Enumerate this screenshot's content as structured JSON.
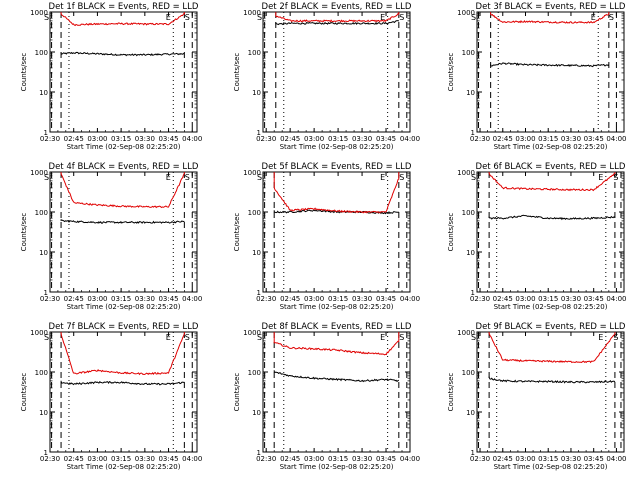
{
  "figure": {
    "colors": {
      "events": "#000000",
      "lld": "#e00000",
      "axis": "#000000"
    },
    "ylabel": "Counts/sec",
    "yticks": [
      "1",
      "10",
      "100",
      "1000"
    ],
    "legend_marks": {
      "S": "S",
      "E": "E"
    }
  },
  "chart_data": [
    {
      "type": "line",
      "title": "Det 1f BLACK = Events, RED = LLD",
      "xlabel": "Start Time (02-Sep-08 02:25:20)",
      "ylabel": "Counts/sec",
      "scale_y": "log",
      "ylim": [
        1,
        1000
      ],
      "xlim": [
        "02:30",
        "04:03"
      ],
      "xticks": [
        "02:30",
        "02:45",
        "03:00",
        "03:15",
        "03:30",
        "03:45",
        "04:00"
      ],
      "markers": [
        {
          "label": "S",
          "time": "02:31",
          "style": "dashed"
        },
        {
          "label": "",
          "time": "02:37",
          "style": "dashed"
        },
        {
          "label": "",
          "time": "02:42",
          "style": "dotted"
        },
        {
          "label": "E",
          "time": "03:48",
          "style": "dotted"
        },
        {
          "label": "",
          "time": "03:55",
          "style": "dashed"
        },
        {
          "label": "S",
          "time": "04:00",
          "style": "dashed"
        }
      ],
      "series": [
        {
          "name": "BLACK = Events",
          "color": "#000000",
          "x": [
            "02:37",
            "02:45",
            "03:00",
            "03:15",
            "03:30",
            "03:45",
            "03:55"
          ],
          "y": [
            90,
            95,
            90,
            85,
            85,
            88,
            90
          ]
        },
        {
          "name": "RED = LLD",
          "color": "#e00000",
          "x": [
            "02:37",
            "02:45",
            "03:00",
            "03:15",
            "03:30",
            "03:45",
            "03:55"
          ],
          "y": [
            900,
            480,
            500,
            510,
            500,
            500,
            900
          ]
        }
      ]
    },
    {
      "type": "line",
      "title": "Det 2f BLACK = Events, RED = LLD",
      "xlabel": "Start Time (02-Sep-08 02:25:20)",
      "ylabel": "Counts/sec",
      "scale_y": "log",
      "ylim": [
        1,
        1000
      ],
      "xlim": [
        "02:28",
        "04:00"
      ],
      "xticks": [
        "02:30",
        "02:45",
        "03:00",
        "03:15",
        "03:30",
        "03:45",
        "04:00"
      ],
      "markers": [
        {
          "label": "S",
          "time": "02:29",
          "style": "dashed"
        },
        {
          "label": "",
          "time": "02:36",
          "style": "dashed"
        },
        {
          "label": "",
          "time": "02:41",
          "style": "dotted"
        },
        {
          "label": "E",
          "time": "03:46",
          "style": "dotted"
        },
        {
          "label": "",
          "time": "03:53",
          "style": "dashed"
        },
        {
          "label": "S",
          "time": "03:58",
          "style": "dashed"
        }
      ],
      "series": [
        {
          "name": "BLACK = Events",
          "color": "#000000",
          "x": [
            "02:36",
            "02:45",
            "03:00",
            "03:15",
            "03:30",
            "03:45",
            "03:53"
          ],
          "y": [
            500,
            520,
            520,
            520,
            520,
            520,
            600
          ]
        },
        {
          "name": "RED = LLD",
          "color": "#e00000",
          "x": [
            "02:36",
            "02:45",
            "03:00",
            "03:15",
            "03:30",
            "03:45",
            "03:53"
          ],
          "y": [
            800,
            600,
            600,
            600,
            600,
            600,
            900
          ]
        }
      ]
    },
    {
      "type": "line",
      "title": "Det 3f BLACK = Events, RED = LLD",
      "xlabel": "Start Time (02-Sep-08 02:25:20)",
      "ylabel": "Counts/sec",
      "scale_y": "log",
      "ylim": [
        1,
        1000
      ],
      "xlim": [
        "02:28",
        "04:05"
      ],
      "xticks": [
        "02:30",
        "02:45",
        "03:00",
        "03:15",
        "03:30",
        "03:45",
        "04:00"
      ],
      "markers": [
        {
          "label": "S",
          "time": "02:29",
          "style": "dashed"
        },
        {
          "label": "",
          "time": "02:37",
          "style": "dashed"
        },
        {
          "label": "",
          "time": "02:42",
          "style": "dotted"
        },
        {
          "label": "E",
          "time": "03:48",
          "style": "dotted"
        },
        {
          "label": "",
          "time": "03:55",
          "style": "dashed"
        },
        {
          "label": "S",
          "time": "04:00",
          "style": "dashed"
        }
      ],
      "series": [
        {
          "name": "BLACK = Events",
          "color": "#000000",
          "x": [
            "02:37",
            "02:45",
            "03:00",
            "03:15",
            "03:30",
            "03:45",
            "03:55"
          ],
          "y": [
            45,
            52,
            48,
            47,
            46,
            45,
            48
          ]
        },
        {
          "name": "RED = LLD",
          "color": "#e00000",
          "x": [
            "02:37",
            "02:45",
            "03:00",
            "03:15",
            "03:30",
            "03:45",
            "03:55"
          ],
          "y": [
            900,
            560,
            580,
            560,
            550,
            550,
            900
          ]
        }
      ]
    },
    {
      "type": "line",
      "title": "Det 4f BLACK = Events, RED = LLD",
      "xlabel": "Start Time (02-Sep-08 02:25:20)",
      "ylabel": "Counts/sec",
      "scale_y": "log",
      "ylim": [
        1,
        1000
      ],
      "xlim": [
        "02:30",
        "04:03"
      ],
      "xticks": [
        "02:30",
        "02:45",
        "03:00",
        "03:15",
        "03:30",
        "03:45",
        "04:00"
      ],
      "markers": [
        {
          "label": "S",
          "time": "02:31",
          "style": "dashed"
        },
        {
          "label": "",
          "time": "02:37",
          "style": "dashed"
        },
        {
          "label": "",
          "time": "02:42",
          "style": "dotted"
        },
        {
          "label": "E",
          "time": "03:48",
          "style": "dotted"
        },
        {
          "label": "",
          "time": "03:55",
          "style": "dashed"
        },
        {
          "label": "S",
          "time": "04:00",
          "style": "dashed"
        }
      ],
      "series": [
        {
          "name": "BLACK = Events",
          "color": "#000000",
          "x": [
            "02:37",
            "02:45",
            "03:00",
            "03:15",
            "03:30",
            "03:45",
            "03:55"
          ],
          "y": [
            60,
            58,
            55,
            55,
            55,
            55,
            58
          ]
        },
        {
          "name": "RED = LLD",
          "color": "#e00000",
          "x": [
            "02:37",
            "02:45",
            "03:00",
            "03:15",
            "03:30",
            "03:45",
            "03:55"
          ],
          "y": [
            900,
            170,
            150,
            140,
            135,
            135,
            900
          ]
        }
      ]
    },
    {
      "type": "line",
      "title": "Det 5f BLACK = Events, RED = LLD",
      "xlabel": "Start Time (02-Sep-08 02:25:20)",
      "ylabel": "Counts/sec",
      "scale_y": "log",
      "ylim": [
        1,
        1000
      ],
      "xlim": [
        "02:28",
        "04:00"
      ],
      "xticks": [
        "02:30",
        "02:45",
        "03:00",
        "03:15",
        "03:30",
        "03:45",
        "04:00"
      ],
      "markers": [
        {
          "label": "S",
          "time": "02:29",
          "style": "dashed"
        },
        {
          "label": "",
          "time": "02:35",
          "style": "dashed"
        },
        {
          "label": "",
          "time": "02:41",
          "style": "dotted"
        },
        {
          "label": "E",
          "time": "03:46",
          "style": "dotted"
        },
        {
          "label": "",
          "time": "03:53",
          "style": "dashed"
        },
        {
          "label": "S",
          "time": "03:58",
          "style": "dashed"
        }
      ],
      "series": [
        {
          "name": "BLACK = Events",
          "color": "#000000",
          "x": [
            "02:35",
            "02:45",
            "03:00",
            "03:15",
            "03:30",
            "03:45",
            "03:53"
          ],
          "y": [
            100,
            100,
            110,
            100,
            100,
            95,
            100
          ]
        },
        {
          "name": "RED = LLD",
          "color": "#e00000",
          "x": [
            "02:35",
            "02:45",
            "03:00",
            "03:15",
            "03:30",
            "03:45",
            "03:53"
          ],
          "y": [
            400,
            110,
            120,
            105,
            100,
            100,
            700
          ]
        }
      ]
    },
    {
      "type": "line",
      "title": "Det 6f BLACK = Events, RED = LLD",
      "xlabel": "Start Time (02-Sep-08 02:25:20)",
      "ylabel": "Counts/sec",
      "scale_y": "log",
      "ylim": [
        1,
        1000
      ],
      "xlim": [
        "02:28",
        "04:05"
      ],
      "xticks": [
        "02:30",
        "02:45",
        "03:00",
        "03:15",
        "03:30",
        "03:45",
        "04:00"
      ],
      "markers": [
        {
          "label": "S",
          "time": "02:29",
          "style": "dashed"
        },
        {
          "label": "",
          "time": "02:36",
          "style": "dashed"
        },
        {
          "label": "",
          "time": "02:41",
          "style": "dotted"
        },
        {
          "label": "E",
          "time": "03:53",
          "style": "dotted"
        },
        {
          "label": "",
          "time": "03:59",
          "style": "dashed"
        },
        {
          "label": "S",
          "time": "04:03",
          "style": "dashed"
        }
      ],
      "series": [
        {
          "name": "BLACK = Events",
          "color": "#000000",
          "x": [
            "02:36",
            "02:45",
            "03:00",
            "03:15",
            "03:30",
            "03:45",
            "03:59"
          ],
          "y": [
            70,
            70,
            80,
            70,
            68,
            70,
            75
          ]
        },
        {
          "name": "RED = LLD",
          "color": "#e00000",
          "x": [
            "02:36",
            "02:45",
            "03:00",
            "03:15",
            "03:30",
            "03:45",
            "03:59"
          ],
          "y": [
            900,
            400,
            380,
            370,
            360,
            360,
            900
          ]
        }
      ]
    },
    {
      "type": "line",
      "title": "Det 7f BLACK = Events, RED = LLD",
      "xlabel": "Start Time (02-Sep-08 02:25:20)",
      "ylabel": "Counts/sec",
      "scale_y": "log",
      "ylim": [
        1,
        1000
      ],
      "xlim": [
        "02:30",
        "04:03"
      ],
      "xticks": [
        "02:30",
        "02:45",
        "03:00",
        "03:15",
        "03:30",
        "03:45",
        "04:00"
      ],
      "markers": [
        {
          "label": "S",
          "time": "02:31",
          "style": "dashed"
        },
        {
          "label": "",
          "time": "02:37",
          "style": "dashed"
        },
        {
          "label": "",
          "time": "02:42",
          "style": "dotted"
        },
        {
          "label": "E",
          "time": "03:48",
          "style": "dotted"
        },
        {
          "label": "",
          "time": "03:55",
          "style": "dashed"
        },
        {
          "label": "S",
          "time": "04:00",
          "style": "dashed"
        }
      ],
      "series": [
        {
          "name": "BLACK = Events",
          "color": "#000000",
          "x": [
            "02:37",
            "02:45",
            "03:00",
            "03:15",
            "03:30",
            "03:45",
            "03:55"
          ],
          "y": [
            55,
            50,
            55,
            55,
            50,
            50,
            55
          ]
        },
        {
          "name": "RED = LLD",
          "color": "#e00000",
          "x": [
            "02:37",
            "02:45",
            "03:00",
            "03:15",
            "03:30",
            "03:45",
            "03:55"
          ],
          "y": [
            900,
            90,
            110,
            95,
            90,
            95,
            900
          ]
        }
      ]
    },
    {
      "type": "line",
      "title": "Det 8f BLACK = Events, RED = LLD",
      "xlabel": "Start Time (02-Sep-08 02:25:20)",
      "ylabel": "Counts/sec",
      "scale_y": "log",
      "ylim": [
        1,
        1000
      ],
      "xlim": [
        "02:28",
        "04:00"
      ],
      "xticks": [
        "02:30",
        "02:45",
        "03:00",
        "03:15",
        "03:30",
        "03:45",
        "04:00"
      ],
      "markers": [
        {
          "label": "S",
          "time": "02:29",
          "style": "dashed"
        },
        {
          "label": "",
          "time": "02:35",
          "style": "dashed"
        },
        {
          "label": "",
          "time": "02:41",
          "style": "dotted"
        },
        {
          "label": "E",
          "time": "03:46",
          "style": "dotted"
        },
        {
          "label": "",
          "time": "03:53",
          "style": "dashed"
        },
        {
          "label": "S",
          "time": "03:58",
          "style": "dashed"
        }
      ],
      "series": [
        {
          "name": "BLACK = Events",
          "color": "#000000",
          "x": [
            "02:35",
            "02:45",
            "03:00",
            "03:15",
            "03:30",
            "03:45",
            "03:53"
          ],
          "y": [
            100,
            80,
            70,
            65,
            60,
            65,
            60
          ]
        },
        {
          "name": "RED = LLD",
          "color": "#e00000",
          "x": [
            "02:35",
            "02:45",
            "03:00",
            "03:15",
            "03:30",
            "03:45",
            "03:53"
          ],
          "y": [
            550,
            400,
            380,
            350,
            300,
            280,
            600
          ]
        }
      ]
    },
    {
      "type": "line",
      "title": "Det 9f BLACK = Events, RED = LLD",
      "xlabel": "Start Time (02-Sep-08 02:25:20)",
      "ylabel": "Counts/sec",
      "scale_y": "log",
      "ylim": [
        1,
        1000
      ],
      "xlim": [
        "02:28",
        "04:05"
      ],
      "xticks": [
        "02:30",
        "02:45",
        "03:00",
        "03:15",
        "03:30",
        "03:45",
        "04:00"
      ],
      "markers": [
        {
          "label": "S",
          "time": "02:29",
          "style": "dashed"
        },
        {
          "label": "",
          "time": "02:36",
          "style": "dashed"
        },
        {
          "label": "",
          "time": "02:41",
          "style": "dotted"
        },
        {
          "label": "E",
          "time": "03:53",
          "style": "dotted"
        },
        {
          "label": "",
          "time": "03:59",
          "style": "dashed"
        },
        {
          "label": "S",
          "time": "04:03",
          "style": "dashed"
        }
      ],
      "series": [
        {
          "name": "BLACK = Events",
          "color": "#000000",
          "x": [
            "02:36",
            "02:45",
            "03:00",
            "03:15",
            "03:30",
            "03:45",
            "03:59"
          ],
          "y": [
            70,
            60,
            58,
            58,
            56,
            56,
            58
          ]
        },
        {
          "name": "RED = LLD",
          "color": "#e00000",
          "x": [
            "02:36",
            "02:45",
            "03:00",
            "03:15",
            "03:30",
            "03:45",
            "03:59"
          ],
          "y": [
            900,
            200,
            190,
            185,
            180,
            180,
            900
          ]
        }
      ]
    }
  ]
}
